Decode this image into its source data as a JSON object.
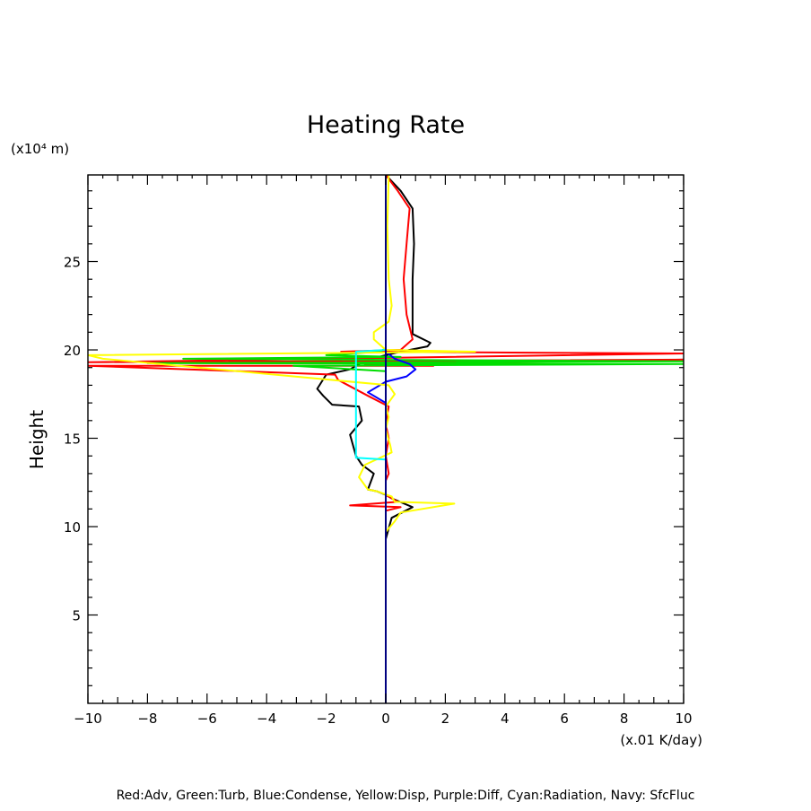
{
  "chart_data": {
    "type": "line",
    "title": "Heating Rate",
    "ylabel": "Height",
    "y_unit": "(x10⁴ m)",
    "x_unit": "(x.01 K/day)",
    "xlim": [
      -10,
      10
    ],
    "ylim": [
      0,
      29.9
    ],
    "x_ticks": [
      -10,
      -8,
      -6,
      -4,
      -2,
      0,
      2,
      4,
      6,
      8,
      10
    ],
    "x_tick_labels": [
      "−10",
      "−8",
      "−6",
      "−4",
      "−2",
      "0",
      "2",
      "4",
      "6",
      "8",
      "10"
    ],
    "y_ticks": [
      5,
      10,
      15,
      20,
      25
    ],
    "y_tick_labels": [
      "5",
      "10",
      "15",
      "20",
      "25"
    ],
    "legend": "Red:Adv, Green:Turb, Blue:Condense, Yellow:Disp, Purple:Diff, Cyan:Radiation, Navy: SfcFluc",
    "series": [
      {
        "name": "Diff",
        "color": "#000000",
        "points": [
          [
            0,
            0
          ],
          [
            0,
            9.3
          ],
          [
            0.2,
            10.5
          ],
          [
            0.9,
            11.1
          ],
          [
            0.2,
            11.6
          ],
          [
            0,
            11.8
          ],
          [
            -0.3,
            12
          ],
          [
            -0.6,
            12.1
          ],
          [
            -0.4,
            13
          ],
          [
            -0.8,
            13.5
          ],
          [
            -1.0,
            14
          ],
          [
            -1.2,
            15.2
          ],
          [
            -0.8,
            16
          ],
          [
            -0.9,
            16.8
          ],
          [
            -1.8,
            16.9
          ],
          [
            -2.1,
            17.4
          ],
          [
            -2.3,
            17.8
          ],
          [
            -2.0,
            18.6
          ],
          [
            -1.2,
            18.9
          ],
          [
            -0.7,
            19.4
          ],
          [
            0,
            19.7
          ],
          [
            0.5,
            19.9
          ],
          [
            1.4,
            20.2
          ],
          [
            1.5,
            20.4
          ],
          [
            0.9,
            20.9
          ],
          [
            0.9,
            22
          ],
          [
            0.9,
            24
          ],
          [
            0.95,
            26
          ],
          [
            0.9,
            28
          ],
          [
            0.5,
            29
          ],
          [
            0,
            29.9
          ]
        ]
      },
      {
        "name": "Adv",
        "color": "#ff0000",
        "points": [
          [
            0,
            0
          ],
          [
            0,
            9.5
          ],
          [
            0,
            10.9
          ],
          [
            0.5,
            11.1
          ],
          [
            -1.2,
            11.2
          ],
          [
            0.4,
            11.4
          ],
          [
            0,
            11.8
          ],
          [
            0,
            12.6
          ],
          [
            0.1,
            13
          ],
          [
            0,
            14
          ],
          [
            0.1,
            15
          ],
          [
            0,
            15.8
          ],
          [
            0.1,
            16.8
          ],
          [
            -0.6,
            17.4
          ],
          [
            -1.6,
            18.3
          ],
          [
            -1.7,
            18.6
          ],
          [
            -10,
            19.1
          ],
          [
            1.6,
            19.1
          ],
          [
            -0.7,
            19.2
          ],
          [
            10,
            19.45
          ],
          [
            -10,
            19.3
          ],
          [
            10,
            19.8
          ],
          [
            -1.5,
            19.9
          ],
          [
            0.5,
            20.0
          ],
          [
            0.7,
            20.3
          ],
          [
            0.9,
            20.6
          ],
          [
            0.7,
            22
          ],
          [
            0.6,
            24
          ],
          [
            0.7,
            26
          ],
          [
            0.8,
            28
          ],
          [
            0.4,
            29
          ],
          [
            0,
            29.9
          ]
        ]
      },
      {
        "name": "Turb",
        "color": "#00dd00",
        "points": [
          [
            0,
            0
          ],
          [
            0,
            9.5
          ],
          [
            0,
            18.5
          ],
          [
            0,
            18.8
          ],
          [
            -3.1,
            19.1
          ],
          [
            10,
            19.2
          ],
          [
            -8,
            19.25
          ],
          [
            10,
            19.35
          ],
          [
            -6.8,
            19.5
          ],
          [
            0.5,
            19.6
          ],
          [
            -2,
            19.7
          ],
          [
            -0.2,
            19.9
          ],
          [
            0,
            20.1
          ],
          [
            0,
            29.9
          ]
        ]
      },
      {
        "name": "Condense",
        "color": "#0000ff",
        "points": [
          [
            0,
            0
          ],
          [
            0,
            14
          ],
          [
            0,
            17
          ],
          [
            -0.6,
            17.6
          ],
          [
            0,
            18.2
          ],
          [
            0.7,
            18.5
          ],
          [
            1.0,
            18.9
          ],
          [
            0.8,
            19.2
          ],
          [
            0.3,
            19.5
          ],
          [
            0,
            19.9
          ],
          [
            0,
            29.9
          ]
        ]
      },
      {
        "name": "Disp",
        "color": "#ffff00",
        "points": [
          [
            0,
            0
          ],
          [
            0,
            9.7
          ],
          [
            0.3,
            10.3
          ],
          [
            0.5,
            10.8
          ],
          [
            2.3,
            11.3
          ],
          [
            0.3,
            11.4
          ],
          [
            0.2,
            11.7
          ],
          [
            -0.3,
            12
          ],
          [
            -0.6,
            12.1
          ],
          [
            -0.9,
            12.8
          ],
          [
            -0.7,
            13.5
          ],
          [
            0.2,
            14.2
          ],
          [
            0.15,
            14.6
          ],
          [
            0,
            15.5
          ],
          [
            0.1,
            16.2
          ],
          [
            0,
            16.8
          ],
          [
            0.3,
            17.5
          ],
          [
            0.1,
            18
          ],
          [
            -9.5,
            19.5
          ],
          [
            -10,
            19.7
          ],
          [
            3,
            19.9
          ],
          [
            0,
            20.0
          ],
          [
            -0.4,
            20.6
          ],
          [
            -0.4,
            21
          ],
          [
            0.1,
            21.6
          ],
          [
            0.2,
            22.5
          ],
          [
            0.1,
            24
          ],
          [
            0.05,
            27
          ],
          [
            0.1,
            29.9
          ]
        ]
      },
      {
        "name": "Radiation",
        "color": "#00ffff",
        "points": [
          [
            0,
            0
          ],
          [
            0,
            13.8
          ],
          [
            -1.0,
            13.9
          ],
          [
            -1.0,
            15.5
          ],
          [
            -1.0,
            17.2
          ],
          [
            -1.0,
            19.9
          ],
          [
            0,
            20.0
          ],
          [
            0,
            29.9
          ]
        ]
      },
      {
        "name": "SfcFluc",
        "color": "#000080",
        "points": [
          [
            0,
            0
          ],
          [
            0,
            29.9
          ]
        ]
      }
    ]
  }
}
